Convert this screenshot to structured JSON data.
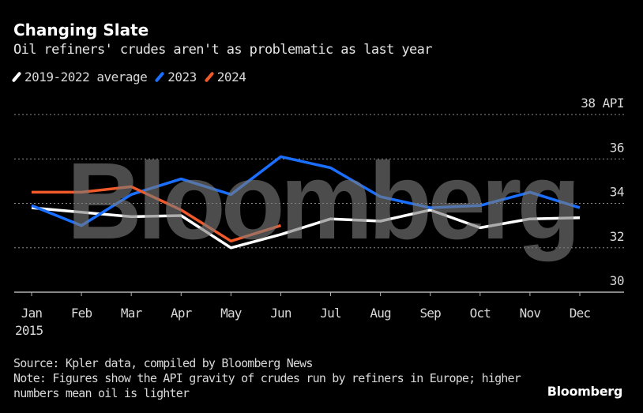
{
  "chart_data": {
    "type": "line",
    "title": "Changing Slate",
    "subtitle": "Oil refiners' crudes aren't as problematic as last year",
    "xlabel": "",
    "ylabel": "API",
    "categories": [
      "Jan",
      "Feb",
      "Mar",
      "Apr",
      "May",
      "Jun",
      "Jul",
      "Aug",
      "Sep",
      "Oct",
      "Nov",
      "Dec"
    ],
    "x_sublabel": "2015",
    "y_ticks": [
      30,
      32,
      34,
      36,
      38
    ],
    "y_tick_labels": [
      "30",
      "32",
      "34",
      "36",
      "38 API"
    ],
    "ylim": [
      30,
      38
    ],
    "grid": true,
    "legend_position": "top-left",
    "series": [
      {
        "name": "2019-2022 average",
        "color": "#ffffff",
        "values": [
          33.8,
          33.6,
          33.4,
          33.45,
          32.0,
          32.6,
          33.3,
          33.2,
          33.7,
          32.9,
          33.3,
          33.35
        ]
      },
      {
        "name": "2023",
        "color": "#1a6fff",
        "values": [
          33.9,
          33.0,
          34.4,
          35.1,
          34.4,
          36.1,
          35.6,
          34.3,
          33.8,
          33.9,
          34.5,
          33.8
        ]
      },
      {
        "name": "2024",
        "color": "#f05a2b",
        "values": [
          34.5,
          34.5,
          34.75,
          33.7,
          32.3,
          33.0
        ]
      }
    ],
    "watermark": "Bloomberg"
  },
  "footer": {
    "source": "Source: Kpler data, compiled by Bloomberg News",
    "note_line1": "Note: Figures show the API gravity of crudes run by refiners in Europe; higher",
    "note_line2": "numbers mean oil is lighter"
  },
  "brand": "Bloomberg"
}
